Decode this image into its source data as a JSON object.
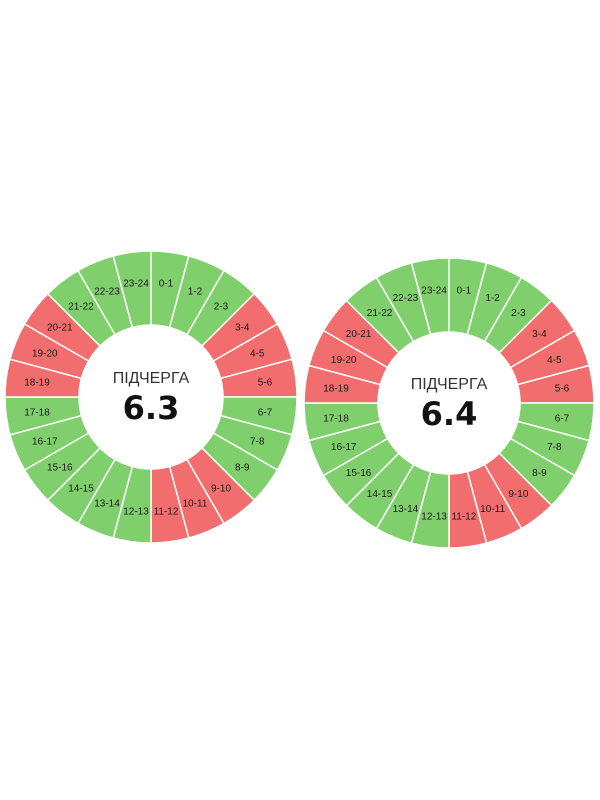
{
  "colors": {
    "on": "#7fcf6c",
    "off": "#f26d6d"
  },
  "slot_labels": [
    "0-1",
    "1-2",
    "2-3",
    "3-4",
    "4-5",
    "5-6",
    "6-7",
    "7-8",
    "8-9",
    "9-10",
    "10-11",
    "11-12",
    "12-13",
    "13-14",
    "14-15",
    "15-16",
    "16-17",
    "17-18",
    "18-19",
    "19-20",
    "20-21",
    "21-22",
    "22-23",
    "23-24"
  ],
  "queues": [
    {
      "title": "ПІДЧЕРГА",
      "number": "6.3",
      "status": [
        "on",
        "on",
        "on",
        "off",
        "off",
        "off",
        "on",
        "on",
        "on",
        "off",
        "off",
        "off",
        "on",
        "on",
        "on",
        "on",
        "on",
        "on",
        "off",
        "off",
        "off",
        "on",
        "on",
        "on"
      ]
    },
    {
      "title": "ПІДЧЕРГА",
      "number": "6.4",
      "status": [
        "on",
        "on",
        "on",
        "off",
        "off",
        "off",
        "on",
        "on",
        "on",
        "off",
        "off",
        "off",
        "on",
        "on",
        "on",
        "on",
        "on",
        "on",
        "off",
        "off",
        "off",
        "on",
        "on",
        "on"
      ]
    }
  ]
}
